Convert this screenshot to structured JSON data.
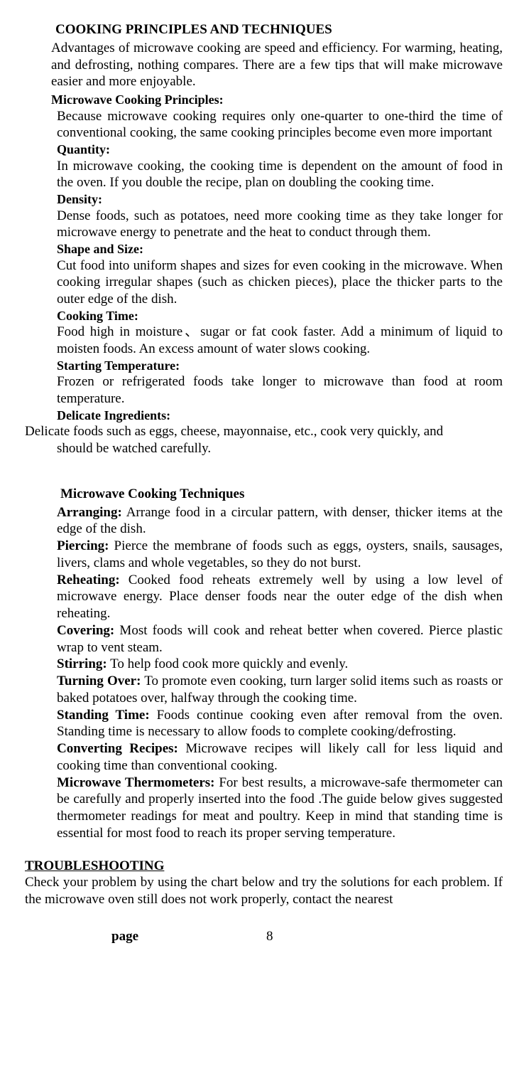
{
  "title": "COOKING PRINCIPLES AND TECHNIQUES",
  "intro": "Advantages of microwave cooking are speed and efficiency. For warming, heating, and defrosting, nothing compares. There are a few tips that will make microwave easier and more enjoyable.",
  "principles": {
    "header": "Microwave Cooking Principles:",
    "text": "Because microwave cooking requires only one-quarter to one-third the time of conventional cooking, the same cooking principles become even more important",
    "items": [
      {
        "label": "Quantity:",
        "text": "In microwave cooking, the cooking time is dependent on the amount of food in the oven. If you double the recipe, plan on doubling the cooking time."
      },
      {
        "label": "Density:",
        "text": "Dense foods, such as potatoes, need more cooking time as they take longer for microwave energy to penetrate and the heat to conduct through them."
      },
      {
        "label": "Shape and Size:",
        "text": "Cut food into uniform shapes and sizes for even cooking in the microwave. When cooking irregular shapes (such as chicken pieces), place the thicker parts to the outer edge of the dish."
      },
      {
        "label": "Cooking Time:",
        "text": "Food high in moisture、sugar or fat cook faster. Add a minimum of liquid to moisten foods. An excess amount of water slows cooking."
      },
      {
        "label": "Starting Temperature:",
        "text": "Frozen or refrigerated foods take longer to microwave than food at room temperature."
      },
      {
        "label": "Delicate Ingredients:",
        "text_line1": "Delicate foods such as eggs, cheese, mayonnaise, etc., cook very quickly, and",
        "text_line2": "should be watched carefully."
      }
    ]
  },
  "techniques": {
    "header": "Microwave Cooking Techniques",
    "items": [
      {
        "label": "Arranging:",
        "text": " Arrange food in a circular pattern, with denser, thicker items at the edge of the dish."
      },
      {
        "label": "Piercing:",
        "text": "   Pierce the membrane of foods such as eggs, oysters, snails, sausages, livers, clams and whole vegetables, so they do not burst."
      },
      {
        "label": "Reheating:",
        "text": "  Cooked food reheats extremely well by using a low level of microwave energy. Place denser foods near the outer edge of the dish when reheating."
      },
      {
        "label": "Covering:",
        "text": "  Most foods will cook and reheat better when covered. Pierce plastic wrap to vent steam."
      },
      {
        "label": "Stirring:",
        "text": "  To help food cook more quickly and evenly."
      },
      {
        "label": "Turning Over:",
        "text": "   To promote even cooking, turn larger solid items such as roasts or baked potatoes over, halfway through the cooking time."
      },
      {
        "label": "Standing Time:",
        "text": " Foods continue cooking even after removal from the oven. Standing time is necessary to allow foods to complete cooking/defrosting."
      },
      {
        "label": "Converting Recipes:",
        "text": " Microwave recipes will likely call for less liquid and cooking time than conventional cooking."
      },
      {
        "label": "Microwave Thermometers:",
        "text": " For best results, a microwave-safe thermometer can be carefully and properly inserted into the food .The guide below gives suggested thermometer readings for meat and poultry. Keep in mind that standing time is essential for most food to reach its proper serving temperature."
      }
    ]
  },
  "troubleshooting": {
    "header": "TROUBLESHOOTING",
    "text": "Check your problem by using the chart below and try the solutions for each problem. If the microwave oven still does not work properly, contact the nearest"
  },
  "footer": {
    "page_label": "page",
    "page_number": "8"
  }
}
